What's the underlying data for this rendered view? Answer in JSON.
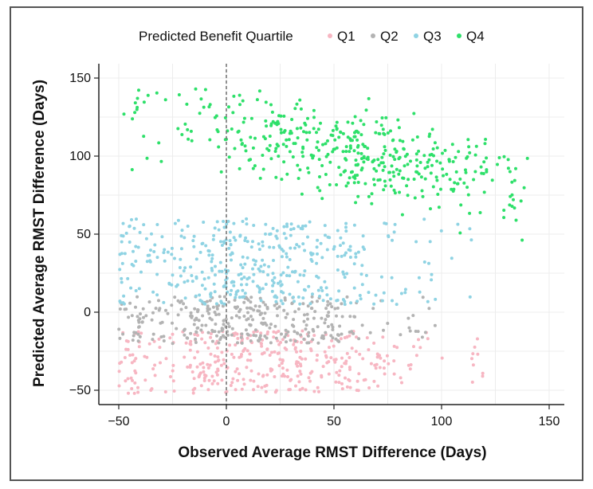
{
  "chart_data": {
    "type": "scatter",
    "title": "",
    "xlabel": "Observed Average RMST Difference (Days)",
    "ylabel": "Predicted Average RMST Difference (Days)",
    "xlim": [
      -60,
      160
    ],
    "ylim": [
      -60,
      160
    ],
    "xticks": [
      -50,
      0,
      50,
      100,
      150
    ],
    "yticks": [
      -50,
      0,
      50,
      100,
      150
    ],
    "xtick_labels": [
      "−50",
      "0",
      "50",
      "100",
      "150"
    ],
    "ytick_labels": [
      "−50",
      "0",
      "50",
      "100",
      "150"
    ],
    "reference_line": {
      "x": 0,
      "style": "dashed"
    },
    "grid": true,
    "legend": {
      "title": "Predicted Benefit Quartile",
      "placement": "top"
    },
    "series": [
      {
        "name": "Q1",
        "color": "#f7b6c2",
        "y_range": [
          -52,
          -12
        ],
        "x_range": [
          -50,
          120
        ],
        "x_center": 20,
        "count": 380
      },
      {
        "name": "Q2",
        "color": "#b3b3b3",
        "y_range": [
          -20,
          10
        ],
        "x_range": [
          -50,
          100
        ],
        "x_center": 10,
        "count": 330
      },
      {
        "name": "Q3",
        "color": "#8fd3e3",
        "y_range": [
          5,
          60
        ],
        "x_range": [
          -50,
          115
        ],
        "x_center": 15,
        "count": 420
      },
      {
        "name": "Q4",
        "color": "#2ee06a",
        "y_range": [
          40,
          143
        ],
        "x_range": [
          -48,
          140
        ],
        "x_center": 60,
        "count": 450
      }
    ]
  }
}
